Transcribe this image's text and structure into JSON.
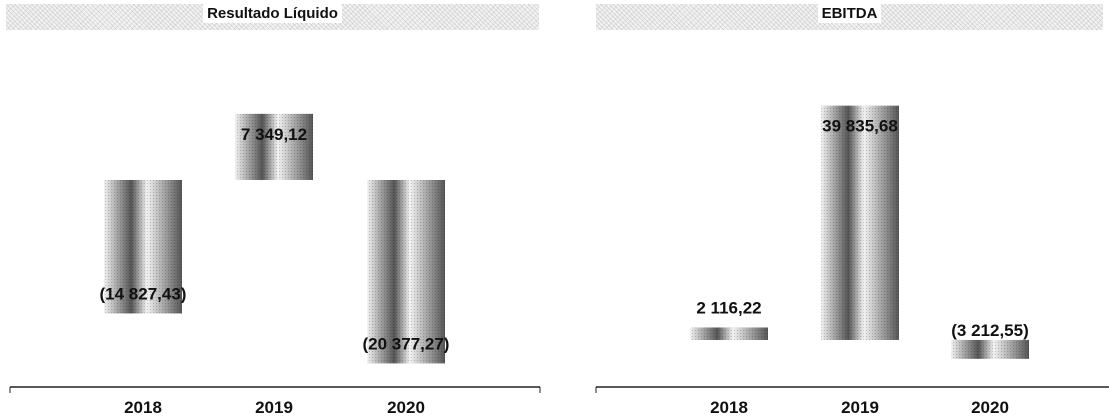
{
  "chart_data": [
    {
      "type": "bar",
      "title": "Resultado Líquido",
      "categories": [
        "2018",
        "2019",
        "2020"
      ],
      "values": [
        -14827.43,
        7349.12,
        -20377.27
      ],
      "labels": [
        "(14 827,43)",
        "7 349,12",
        "(20 377,27)"
      ],
      "ylim": [
        -23000,
        10000
      ],
      "grid": false,
      "colors": {
        "bar_dark": "#555555",
        "bar_light": "#f2f2f2",
        "axis": "#222222"
      }
    },
    {
      "type": "bar",
      "title": "EBITDA",
      "categories": [
        "2018",
        "2019",
        "2020"
      ],
      "values": [
        2116.22,
        39835.68,
        -3212.55
      ],
      "labels": [
        "2 116,22",
        "39 835,68",
        "(3 212,55)"
      ],
      "ylim": [
        -8000,
        42500
      ],
      "grid": false,
      "colors": {
        "bar_dark": "#555555",
        "bar_light": "#f2f2f2",
        "axis": "#222222"
      }
    }
  ]
}
